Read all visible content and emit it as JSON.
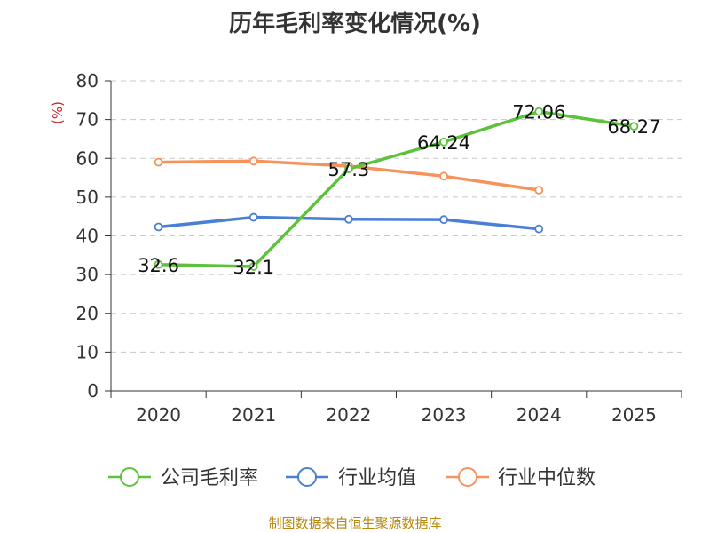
{
  "chart_data": {
    "type": "line",
    "title": "历年毛利率变化情况(%)",
    "ylabel": "(%)",
    "ylim": [
      0,
      80
    ],
    "yticks": [
      0,
      10,
      20,
      30,
      40,
      50,
      60,
      70,
      80
    ],
    "categories": [
      "2020",
      "2021",
      "2022",
      "2023",
      "2024",
      "2025"
    ],
    "grid": true,
    "legend_position": "bottom",
    "series": [
      {
        "name": "公司毛利率",
        "color": "#5cc23b",
        "values": [
          32.6,
          32.1,
          57.3,
          64.24,
          72.06,
          68.27
        ],
        "labels": [
          "32.6",
          "32.1",
          "57.3",
          "64.24",
          "72.06",
          "68.27"
        ]
      },
      {
        "name": "行业均值",
        "color": "#4a7fd6",
        "values": [
          42.3,
          44.8,
          44.3,
          44.2,
          41.8,
          null
        ]
      },
      {
        "name": "行业中位数",
        "color": "#f7925a",
        "values": [
          59.0,
          59.3,
          58.0,
          55.4,
          51.8,
          null
        ]
      }
    ]
  },
  "footer": {
    "source": "制图数据来自恒生聚源数据库"
  }
}
